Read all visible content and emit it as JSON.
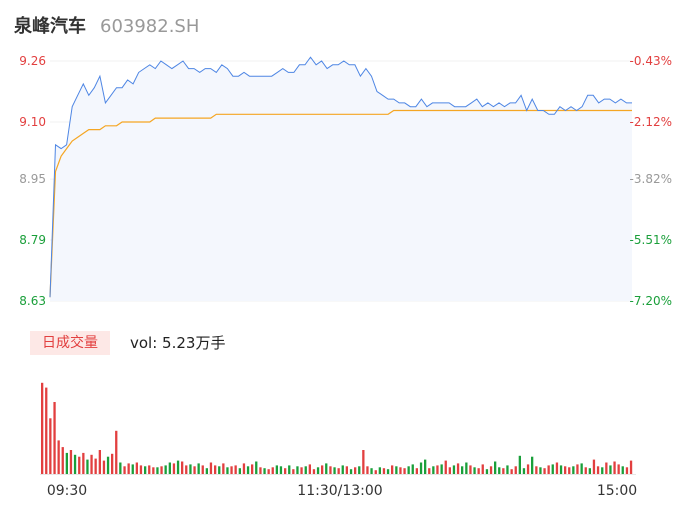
{
  "header": {
    "name": "泉峰汽车",
    "code": "603982.SH"
  },
  "volume_panel": {
    "tag": "日成交量",
    "label": "vol: 5.23万手"
  },
  "colors": {
    "up": "#e23f3f",
    "down": "#1a9f3a",
    "neutral": "#999999",
    "price_line": "#4e86e4",
    "avg_line": "#f5a623",
    "area_fill": "#f4f7fd"
  },
  "chart_data": [
    {
      "type": "line",
      "title": "",
      "x_tick_labels": [
        "09:30",
        "11:30/13:00",
        "15:00"
      ],
      "y_tick_labels": [
        "9.26",
        "9.10",
        "8.95",
        "8.79",
        "8.63"
      ],
      "y_tick_values": [
        9.26,
        9.1,
        8.95,
        8.79,
        8.63
      ],
      "y_tick_colors": [
        "#e23f3f",
        "#e23f3f",
        "#999999",
        "#1a9f3a",
        "#1a9f3a"
      ],
      "pct_tick_labels": [
        "-0.43%",
        "-2.12%",
        "-3.82%",
        "-5.51%",
        "-7.20%"
      ],
      "pct_tick_colors": [
        "#e23f3f",
        "#e23f3f",
        "#999999",
        "#1a9f3a",
        "#1a9f3a"
      ],
      "ylim": [
        8.63,
        9.26
      ],
      "series": [
        {
          "kind": "price",
          "values": [
            8.64,
            9.04,
            9.03,
            9.04,
            9.14,
            9.17,
            9.2,
            9.17,
            9.19,
            9.22,
            9.15,
            9.17,
            9.19,
            9.19,
            9.21,
            9.2,
            9.23,
            9.24,
            9.25,
            9.24,
            9.26,
            9.25,
            9.24,
            9.25,
            9.26,
            9.24,
            9.24,
            9.23,
            9.24,
            9.24,
            9.23,
            9.25,
            9.24,
            9.22,
            9.22,
            9.23,
            9.22,
            9.22,
            9.22,
            9.22,
            9.22,
            9.23,
            9.24,
            9.23,
            9.23,
            9.25,
            9.25,
            9.27,
            9.25,
            9.26,
            9.24,
            9.25,
            9.25,
            9.26,
            9.25,
            9.25,
            9.22,
            9.24,
            9.22,
            9.18,
            9.17,
            9.16,
            9.16,
            9.15,
            9.15,
            9.14,
            9.14,
            9.16,
            9.14,
            9.15,
            9.15,
            9.15,
            9.15,
            9.14,
            9.14,
            9.14,
            9.15,
            9.16,
            9.14,
            9.15,
            9.14,
            9.15,
            9.14,
            9.15,
            9.15,
            9.17,
            9.13,
            9.16,
            9.13,
            9.13,
            9.12,
            9.12,
            9.14,
            9.13,
            9.14,
            9.13,
            9.14,
            9.17,
            9.17,
            9.15,
            9.16,
            9.16,
            9.15,
            9.16,
            9.15,
            9.15
          ]
        },
        {
          "kind": "average",
          "values": [
            8.64,
            8.97,
            9.01,
            9.03,
            9.05,
            9.06,
            9.07,
            9.08,
            9.08,
            9.08,
            9.09,
            9.09,
            9.09,
            9.1,
            9.1,
            9.1,
            9.1,
            9.1,
            9.1,
            9.11,
            9.11,
            9.11,
            9.11,
            9.11,
            9.11,
            9.11,
            9.11,
            9.11,
            9.11,
            9.11,
            9.12,
            9.12,
            9.12,
            9.12,
            9.12,
            9.12,
            9.12,
            9.12,
            9.12,
            9.12,
            9.12,
            9.12,
            9.12,
            9.12,
            9.12,
            9.12,
            9.12,
            9.12,
            9.12,
            9.12,
            9.12,
            9.12,
            9.12,
            9.12,
            9.12,
            9.12,
            9.12,
            9.12,
            9.12,
            9.12,
            9.12,
            9.12,
            9.13,
            9.13,
            9.13,
            9.13,
            9.13,
            9.13,
            9.13,
            9.13,
            9.13,
            9.13,
            9.13,
            9.13,
            9.13,
            9.13,
            9.13,
            9.13,
            9.13,
            9.13,
            9.13,
            9.13,
            9.13,
            9.13,
            9.13,
            9.13,
            9.13,
            9.13,
            9.13,
            9.13,
            9.13,
            9.13,
            9.13,
            9.13,
            9.13,
            9.13,
            9.13,
            9.13,
            9.13,
            9.13,
            9.13,
            9.13,
            9.13,
            9.13,
            9.13,
            9.13
          ]
        }
      ]
    },
    {
      "type": "bar",
      "title": "",
      "bar_values": [
        95,
        90,
        58,
        75,
        35,
        28,
        22,
        25,
        20,
        18,
        22,
        15,
        20,
        16,
        25,
        14,
        18,
        21,
        45,
        12,
        8,
        11,
        10,
        12,
        9,
        8,
        9,
        7,
        7,
        8,
        9,
        12,
        11,
        14,
        13,
        9,
        10,
        8,
        11,
        9,
        6,
        12,
        9,
        8,
        11,
        7,
        8,
        9,
        6,
        11,
        8,
        10,
        13,
        7,
        6,
        5,
        7,
        9,
        8,
        6,
        9,
        5,
        8,
        7,
        8,
        10,
        5,
        7,
        9,
        11,
        8,
        7,
        6,
        9,
        8,
        5,
        7,
        8,
        25,
        8,
        6,
        4,
        7,
        6,
        5,
        9,
        8,
        7,
        6,
        8,
        10,
        6,
        12,
        15,
        6,
        8,
        9,
        10,
        14,
        7,
        9,
        11,
        8,
        12,
        9,
        7,
        6,
        10,
        5,
        8,
        13,
        7,
        6,
        9,
        5,
        8,
        19,
        6,
        10,
        18,
        8,
        7,
        6,
        9,
        10,
        12,
        9,
        8,
        7,
        8,
        10,
        11,
        7,
        6,
        15,
        8,
        7,
        12,
        9,
        13,
        10,
        8,
        7,
        14
      ],
      "bar_directions": [
        1,
        1,
        1,
        1,
        1,
        1,
        0,
        1,
        0,
        1,
        1,
        0,
        1,
        1,
        1,
        1,
        0,
        1,
        1,
        0,
        1,
        1,
        0,
        1,
        1,
        0,
        1,
        1,
        0,
        1,
        0,
        0,
        1,
        0,
        1,
        1,
        0,
        1,
        0,
        1,
        0,
        1,
        1,
        0,
        1,
        0,
        1,
        1,
        0,
        1,
        0,
        1,
        0,
        1,
        0,
        1,
        1,
        0,
        0,
        1,
        0,
        1,
        0,
        1,
        0,
        1,
        1,
        0,
        1,
        0,
        1,
        0,
        1,
        0,
        1,
        0,
        1,
        0,
        1,
        1,
        0,
        1,
        0,
        1,
        0,
        1,
        0,
        1,
        1,
        0,
        0,
        1,
        0,
        0,
        1,
        0,
        1,
        0,
        1,
        1,
        0,
        1,
        0,
        0,
        1,
        0,
        1,
        1,
        0,
        1,
        0,
        0,
        1,
        0,
        1,
        1,
        0,
        0,
        1,
        0,
        1,
        0,
        1,
        1,
        0,
        1,
        0,
        1,
        1,
        0,
        1,
        0,
        1,
        0,
        1,
        1,
        0,
        1,
        0,
        1,
        1,
        0,
        1,
        1
      ],
      "ylim": [
        0,
        100
      ]
    }
  ]
}
